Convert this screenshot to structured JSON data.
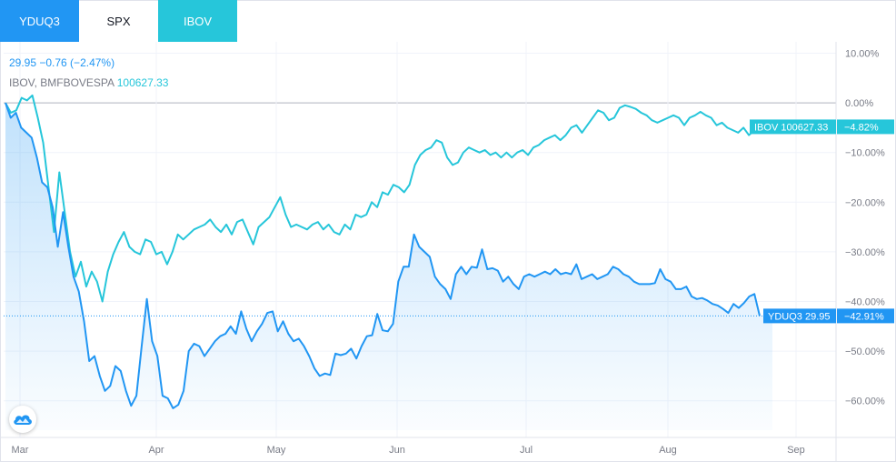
{
  "tabs": [
    {
      "label": "YDUQ3",
      "active": true
    },
    {
      "label": "SPX",
      "active": false
    },
    {
      "label": "IBOV",
      "active": true
    }
  ],
  "legend": {
    "line1": "29.95  −0.76 (−2.47%)",
    "line2_name": "IBOV, BMFBOVESPA",
    "line2_value": "100627.33"
  },
  "colors": {
    "ydu": "#2196f3",
    "ibov": "#26c6da",
    "grid": "#f0f3fa",
    "axis_text": "#787b86"
  },
  "chart_data": {
    "type": "line",
    "x_tick_labels": [
      "Mar",
      "Apr",
      "May",
      "Jun",
      "Jul",
      "Aug",
      "Sep"
    ],
    "y_tick_labels": [
      "10.00%",
      "0.00%",
      "−10.00%",
      "−20.00%",
      "−30.00%",
      "−40.00%",
      "−50.00%",
      "−60.00%"
    ],
    "ylim": [
      -67,
      11
    ],
    "grid": true,
    "series": [
      {
        "name": "YDUQ3",
        "label_tag": "YDUQ3 29.95",
        "label_pct": "−42.91%",
        "last": -42.91,
        "area": true,
        "values": [
          0,
          -3,
          -2,
          -5,
          -6,
          -7,
          -11,
          -16,
          -17,
          -21,
          -29,
          -22,
          -29,
          -35,
          -38,
          -44,
          -52,
          -51,
          -55,
          -58,
          -57,
          -53,
          -54,
          -58,
          -61,
          -59,
          -49,
          -39.5,
          -48,
          -51,
          -59,
          -59.5,
          -61.5,
          -60.8,
          -58,
          -50,
          -48.5,
          -49,
          -51,
          -49.5,
          -48,
          -47,
          -46.5,
          -45,
          -46.5,
          -42,
          -45.5,
          -48,
          -46,
          -44.5,
          -42.3,
          -42.0,
          -46,
          -44,
          -46.5,
          -48,
          -47.5,
          -49,
          -51,
          -53.5,
          -55,
          -54.5,
          -54.8,
          -50.5,
          -50.8,
          -50.5,
          -49.5,
          -51.5,
          -49,
          -47,
          -46.8,
          -42.5,
          -45.8,
          -46,
          -44.5,
          -36,
          -33,
          -33,
          -26.5,
          -29,
          -30,
          -31,
          -35,
          -36.5,
          -37.5,
          -39.5,
          -34.5,
          -33,
          -34.5,
          -33,
          -33.2,
          -29.5,
          -33.5,
          -33.3,
          -33.8,
          -36,
          -35,
          -36.5,
          -37.5,
          -35,
          -34.5,
          -35,
          -34.5,
          -34,
          -34.5,
          -33.5,
          -34.5,
          -34.2,
          -34.5,
          -32.5,
          -35.5,
          -35,
          -34.5,
          -35.5,
          -35,
          -34.5,
          -33,
          -33.5,
          -34.5,
          -35,
          -36,
          -36.5,
          -36.5,
          -36.5,
          -36.3,
          -33.5,
          -35.5,
          -36,
          -37.5,
          -37.5,
          -37,
          -39,
          -39.5,
          -39.3,
          -39.8,
          -40.5,
          -40.8,
          -41.5,
          -42.3,
          -40.5,
          -41.3,
          -40.3,
          -39.0,
          -38.5,
          -42.91
        ]
      },
      {
        "name": "IBOV",
        "label_tag": "IBOV 100627.33",
        "label_pct": "−4.82%",
        "last": -4.82,
        "area": false,
        "values": [
          0,
          -2,
          -1.5,
          1,
          0.5,
          1.5,
          -3,
          -8,
          -17,
          -26,
          -14,
          -22,
          -30,
          -35,
          -32,
          -37,
          -34,
          -36,
          -40,
          -34,
          -30.5,
          -28,
          -26,
          -29,
          -30,
          -30.5,
          -27.5,
          -28,
          -30.5,
          -30,
          -32.5,
          -30,
          -26.5,
          -27.5,
          -26.5,
          -25.5,
          -25,
          -24.5,
          -23.5,
          -25,
          -26,
          -24.5,
          -26.5,
          -24,
          -23.5,
          -26,
          -28.5,
          -25,
          -24,
          -23,
          -21,
          -19,
          -22.5,
          -25,
          -24.5,
          -25,
          -25.5,
          -24.5,
          -24,
          -25.5,
          -24.5,
          -26,
          -26.5,
          -24.5,
          -25.5,
          -22.5,
          -23,
          -22.5,
          -20,
          -21,
          -18,
          -18.5,
          -16.5,
          -17,
          -18,
          -16.5,
          -12.5,
          -10.5,
          -9.5,
          -9,
          -7.5,
          -8,
          -11,
          -12.5,
          -12,
          -10,
          -9,
          -9.5,
          -10,
          -9.5,
          -10.5,
          -10,
          -11,
          -10,
          -11,
          -10,
          -9.5,
          -10.5,
          -9,
          -8.5,
          -7.5,
          -7,
          -6.5,
          -7.5,
          -6.5,
          -5,
          -4.5,
          -6,
          -4.5,
          -3,
          -1.5,
          -2,
          -3.5,
          -3,
          -1,
          -0.5,
          -0.8,
          -1.2,
          -2,
          -2.5,
          -3.5,
          -4,
          -3.5,
          -3,
          -2.5,
          -3,
          -4.5,
          -3,
          -2.5,
          -1.8,
          -2.5,
          -3,
          -4.5,
          -4,
          -5,
          -5.5,
          -6,
          -5,
          -6.5,
          -5.5,
          -4.82
        ]
      }
    ]
  }
}
